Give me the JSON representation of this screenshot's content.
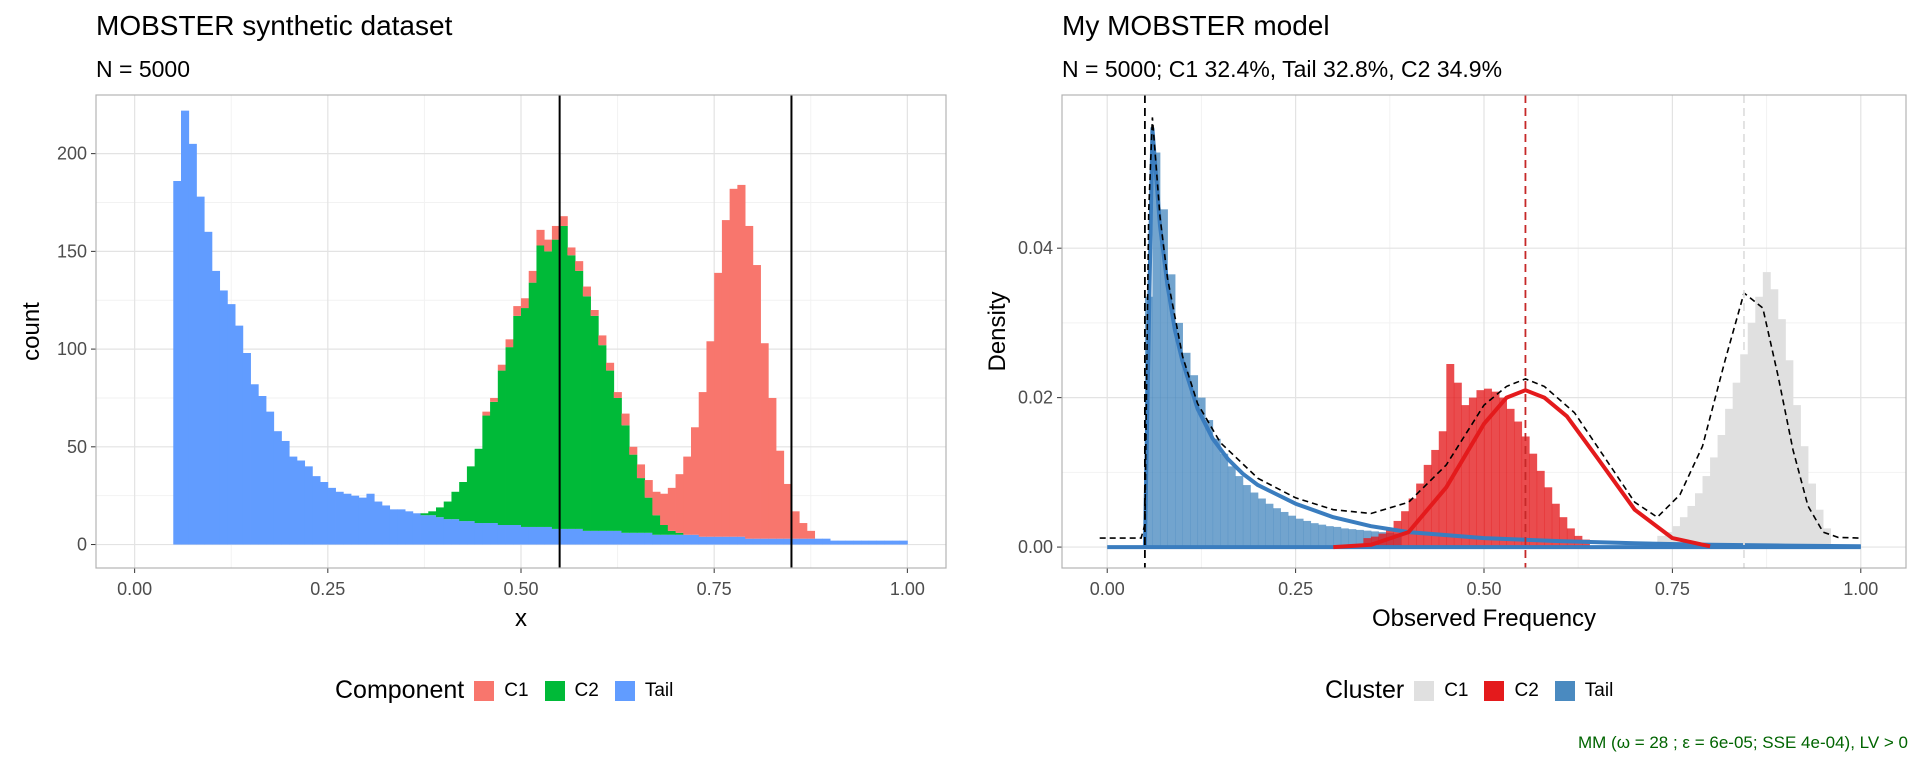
{
  "left": {
    "title": "MOBSTER synthetic dataset",
    "subtitle": "N = 5000",
    "legend_title": "Component",
    "legend_items": [
      {
        "label": "C1",
        "color": "#F8766D"
      },
      {
        "label": "C2",
        "color": "#00BA38"
      },
      {
        "label": "Tail",
        "color": "#619CFF"
      }
    ]
  },
  "right": {
    "title": "My MOBSTER model",
    "subtitle": "N = 5000; C1 32.4%, Tail 32.8%, C2 34.9%",
    "legend_title": "Cluster",
    "legend_items": [
      {
        "label": "C1",
        "color": "#E0E0E0"
      },
      {
        "label": "C2",
        "color": "#E41A1C"
      },
      {
        "label": "Tail",
        "color": "#4A8AC0"
      }
    ],
    "footnote": "MM (ω = 28 ; ε = 6e-05; SSE 4e-04), LV > 0"
  },
  "chart_data": [
    {
      "type": "bar",
      "subtype": "stacked-histogram",
      "title": "MOBSTER synthetic dataset",
      "subtitle": "N = 5000",
      "xlabel": "x",
      "ylabel": "count",
      "xlim": [
        -0.05,
        1.05
      ],
      "ylim": [
        -12,
        230
      ],
      "x_ticks": [
        0,
        0.25,
        0.5,
        0.75,
        1
      ],
      "x_tick_labels": [
        "0.00",
        "0.25",
        "0.50",
        "0.75",
        "1.00"
      ],
      "y_ticks": [
        0,
        50,
        100,
        150,
        200
      ],
      "y_tick_labels": [
        "0",
        "50",
        "100",
        "150",
        "200"
      ],
      "grid": true,
      "legend_position": "bottom",
      "bin_width": 0.01,
      "bin_start": 0.05,
      "vlines": [
        0.55,
        0.85
      ],
      "series": [
        {
          "name": "Tail",
          "color": "#619CFF",
          "values": [
            186,
            222,
            205,
            178,
            160,
            140,
            130,
            123,
            112,
            98,
            82,
            76,
            68,
            58,
            53,
            45,
            43,
            40,
            35,
            32,
            29,
            27,
            26,
            25,
            24,
            26,
            22,
            20,
            18,
            18,
            17,
            16,
            15,
            15,
            14,
            13,
            13,
            12,
            12,
            11,
            11,
            11,
            10,
            10,
            10,
            9,
            9,
            9,
            9,
            8,
            8,
            8,
            8,
            7,
            7,
            7,
            7,
            7,
            6,
            6,
            6,
            6,
            5,
            5,
            5,
            5,
            5,
            5,
            4,
            4,
            4,
            4,
            4,
            4,
            3,
            3,
            3,
            3,
            3,
            3,
            3,
            3,
            3,
            3,
            3,
            2,
            2,
            2,
            2,
            2,
            2,
            2,
            2,
            2,
            2
          ]
        },
        {
          "name": "C2",
          "color": "#00BA38",
          "values": [
            0,
            0,
            0,
            0,
            0,
            0,
            0,
            0,
            0,
            0,
            0,
            0,
            0,
            0,
            0,
            0,
            0,
            0,
            0,
            0,
            0,
            0,
            0,
            0,
            0,
            0,
            0,
            0,
            0,
            0,
            0,
            0,
            1,
            2,
            5,
            9,
            14,
            20,
            28,
            38,
            55,
            62,
            79,
            91,
            107,
            112,
            125,
            144,
            141,
            148,
            155,
            140,
            132,
            120,
            110,
            95,
            82,
            68,
            55,
            40,
            28,
            18,
            10,
            5,
            2,
            1,
            0,
            0,
            0,
            0,
            0,
            0,
            0,
            0,
            0,
            0,
            0,
            0,
            0,
            0,
            0,
            0,
            0,
            0,
            0,
            0,
            0,
            0,
            0,
            0,
            0,
            0,
            0,
            0,
            0
          ]
        },
        {
          "name": "C1",
          "color": "#F8766D",
          "values": [
            0,
            0,
            0,
            0,
            0,
            0,
            0,
            0,
            0,
            0,
            0,
            0,
            0,
            0,
            0,
            0,
            0,
            0,
            0,
            0,
            0,
            0,
            0,
            0,
            0,
            0,
            0,
            0,
            0,
            0,
            0,
            0,
            0,
            0,
            0,
            0,
            0,
            0,
            0,
            0,
            2,
            2,
            3,
            4,
            5,
            5,
            6,
            8,
            6,
            7,
            5,
            4,
            5,
            5,
            3,
            5,
            4,
            3,
            6,
            4,
            7,
            9,
            12,
            16,
            22,
            30,
            40,
            55,
            74,
            100,
            135,
            162,
            178,
            180,
            160,
            140,
            100,
            72,
            45,
            28,
            14,
            8,
            4,
            0,
            0,
            0,
            0,
            0,
            0,
            0,
            0,
            0,
            0,
            0,
            0
          ]
        }
      ]
    },
    {
      "type": "bar",
      "subtype": "density-histogram-with-fitted-curves",
      "title": "My MOBSTER model",
      "subtitle": "N = 5000; C1 32.4%, Tail 32.8%, C2 34.9%",
      "xlabel": "Observed Frequency",
      "ylabel": "Density",
      "xlim": [
        -0.06,
        1.06
      ],
      "ylim": [
        -0.0028,
        0.0605
      ],
      "x_ticks": [
        0,
        0.25,
        0.5,
        0.75,
        1
      ],
      "x_tick_labels": [
        "0.00",
        "0.25",
        "0.50",
        "0.75",
        "1.00"
      ],
      "y_ticks": [
        0,
        0.02,
        0.04
      ],
      "y_tick_labels": [
        "0.00",
        "0.02",
        "0.04"
      ],
      "grid": true,
      "legend_position": "bottom",
      "bin_width": 0.01,
      "bin_start": 0.05,
      "vlines": [
        {
          "x": 0.05,
          "color": "#000000",
          "style": "dashed"
        },
        {
          "x": 0.555,
          "color": "#C62828",
          "style": "dashed"
        },
        {
          "x": 0.845,
          "color": "#E0E0E0",
          "style": "dashed"
        }
      ],
      "bars": [
        {
          "cluster": "Tail",
          "color": "#4A8AC0",
          "values": [
            0.0335,
            0.0528,
            0.0452,
            0.0365,
            0.03,
            0.026,
            0.023,
            0.02,
            0.017,
            0.0145,
            0.0125,
            0.0108,
            0.0095,
            0.0083,
            0.0073,
            0.0065,
            0.0058,
            0.0052,
            0.0047,
            0.0042,
            0.0038,
            0.0035,
            0.0032,
            0.003,
            0.0028,
            0.0027,
            0.0025,
            0.0024,
            0.0023,
            0.0022,
            0.0021,
            0.002,
            0.0019,
            0.0018
          ]
        },
        {
          "cluster": "C2",
          "color": "#E41A1C",
          "values": [
            0.0012,
            0.0014,
            0.0018,
            0.0025,
            0.0035,
            0.0048,
            0.0065,
            0.0085,
            0.011,
            0.013,
            0.0155,
            0.0245,
            0.022,
            0.019,
            0.02,
            0.021,
            0.0212,
            0.0208,
            0.02,
            0.0185,
            0.0168,
            0.0148,
            0.0125,
            0.0102,
            0.008,
            0.0058,
            0.004,
            0.0025,
            0.0015,
            0.001
          ]
        },
        {
          "cluster": "C1",
          "color": "#E0E0E0",
          "values": [
            0.0015,
            0.002,
            0.0028,
            0.004,
            0.0055,
            0.0072,
            0.0095,
            0.012,
            0.015,
            0.0185,
            0.022,
            0.0258,
            0.03,
            0.0335,
            0.0368,
            0.0345,
            0.0305,
            0.025,
            0.019,
            0.0135,
            0.0085,
            0.005,
            0.0025
          ]
        }
      ],
      "curves": [
        {
          "name": "Tail",
          "color": "#3A7DBF",
          "x": [
            0.05,
            0.06,
            0.07,
            0.08,
            0.09,
            0.1,
            0.12,
            0.14,
            0.16,
            0.18,
            0.2,
            0.25,
            0.3,
            0.35,
            0.4,
            0.5,
            0.6,
            0.7,
            0.8,
            0.9,
            1.0
          ],
          "y": [
            0.0,
            0.056,
            0.043,
            0.035,
            0.029,
            0.0248,
            0.0185,
            0.0145,
            0.0118,
            0.0098,
            0.0083,
            0.0058,
            0.004,
            0.0028,
            0.002,
            0.0012,
            0.0008,
            0.0005,
            0.0003,
            0.0002,
            0.0001
          ]
        },
        {
          "name": "C2",
          "color": "#E41A1C",
          "x": [
            0.3,
            0.35,
            0.4,
            0.45,
            0.5,
            0.53,
            0.555,
            0.58,
            0.61,
            0.65,
            0.7,
            0.75,
            0.8
          ],
          "y": [
            0.0,
            0.0003,
            0.002,
            0.008,
            0.0165,
            0.02,
            0.021,
            0.02,
            0.0175,
            0.012,
            0.005,
            0.0012,
            0.0001
          ]
        }
      ],
      "mixture_curve": {
        "name": "Mixture",
        "color": "#000000",
        "style": "dashed",
        "x": [
          -0.01,
          0.045,
          0.05,
          0.055,
          0.06,
          0.07,
          0.08,
          0.1,
          0.12,
          0.15,
          0.2,
          0.25,
          0.3,
          0.35,
          0.4,
          0.45,
          0.5,
          0.53,
          0.555,
          0.58,
          0.62,
          0.66,
          0.7,
          0.73,
          0.76,
          0.79,
          0.82,
          0.845,
          0.87,
          0.89,
          0.91,
          0.93,
          0.95,
          0.97,
          1.0
        ],
        "y": [
          0.0012,
          0.0012,
          0.003,
          0.045,
          0.0575,
          0.0442,
          0.036,
          0.0255,
          0.0192,
          0.014,
          0.0092,
          0.0066,
          0.005,
          0.0045,
          0.006,
          0.011,
          0.019,
          0.0215,
          0.0225,
          0.0215,
          0.018,
          0.012,
          0.006,
          0.004,
          0.007,
          0.0135,
          0.025,
          0.034,
          0.032,
          0.023,
          0.013,
          0.0055,
          0.002,
          0.0013,
          0.0012
        ]
      }
    }
  ]
}
